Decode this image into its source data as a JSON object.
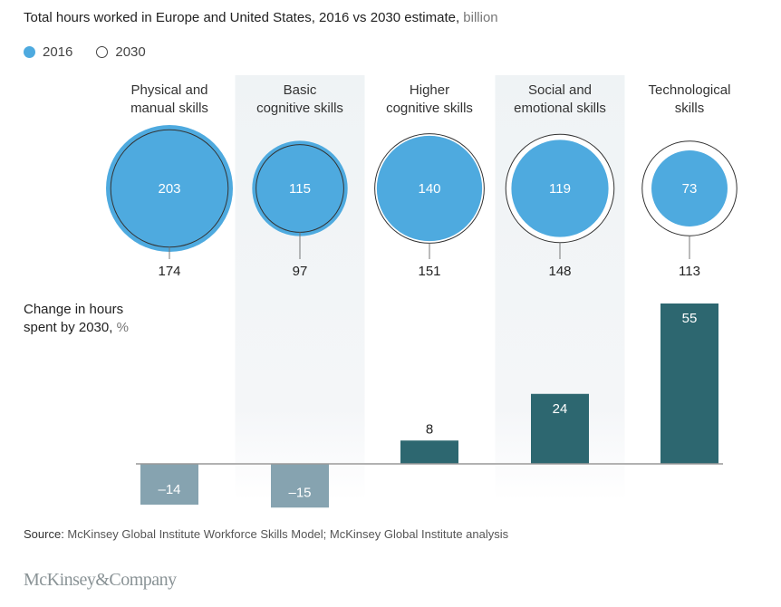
{
  "title": {
    "main": "Total hours worked in Europe and United States, 2016 vs 2030 estimate,",
    "unit": " billion"
  },
  "legend": [
    {
      "label": "2016",
      "style": "filled"
    },
    {
      "label": "2030",
      "style": "outline"
    }
  ],
  "colors": {
    "circle_2016": "#4eaadf",
    "circle_2030_stroke": "#333333",
    "bar_positive": "#2d6770",
    "bar_negative": "#86a3b0",
    "band": "#f1f4f6",
    "baseline": "#999999"
  },
  "bar_axis_label": {
    "main": "Change in hours spent by 2030,",
    "unit": " %"
  },
  "source": {
    "prefix": "Source:",
    "text": " McKinsey Global Institute Workforce Skills Model; McKinsey Global Institute analysis"
  },
  "logo": "McKinsey&Company",
  "chart_data": [
    {
      "type": "bubble",
      "title": "Total hours worked in Europe and United States, 2016 vs 2030 estimate, billion",
      "categories": [
        "Physical and manual skills",
        "Basic cognitive skills",
        "Higher cognitive skills",
        "Social and emotional skills",
        "Technological skills"
      ],
      "category_lines": [
        [
          "Physical and",
          "manual skills"
        ],
        [
          "Basic",
          "cognitive skills"
        ],
        [
          "Higher",
          "cognitive skills"
        ],
        [
          "Social and",
          "emotional skills"
        ],
        [
          "Technological",
          "skills"
        ]
      ],
      "series": [
        {
          "name": "2016",
          "values": [
            203,
            115,
            140,
            119,
            73
          ]
        },
        {
          "name": "2030",
          "values": [
            174,
            97,
            151,
            148,
            113
          ]
        }
      ],
      "units": "billion hours"
    },
    {
      "type": "bar",
      "title": "Change in hours spent by 2030, %",
      "categories": [
        "Physical and manual skills",
        "Basic cognitive skills",
        "Higher cognitive skills",
        "Social and emotional skills",
        "Technological skills"
      ],
      "values": [
        -14,
        -15,
        8,
        24,
        55
      ],
      "value_labels": [
        "–14",
        "–15",
        "8",
        "24",
        "55"
      ],
      "ylim": [
        -15,
        55
      ],
      "grid": false
    }
  ]
}
